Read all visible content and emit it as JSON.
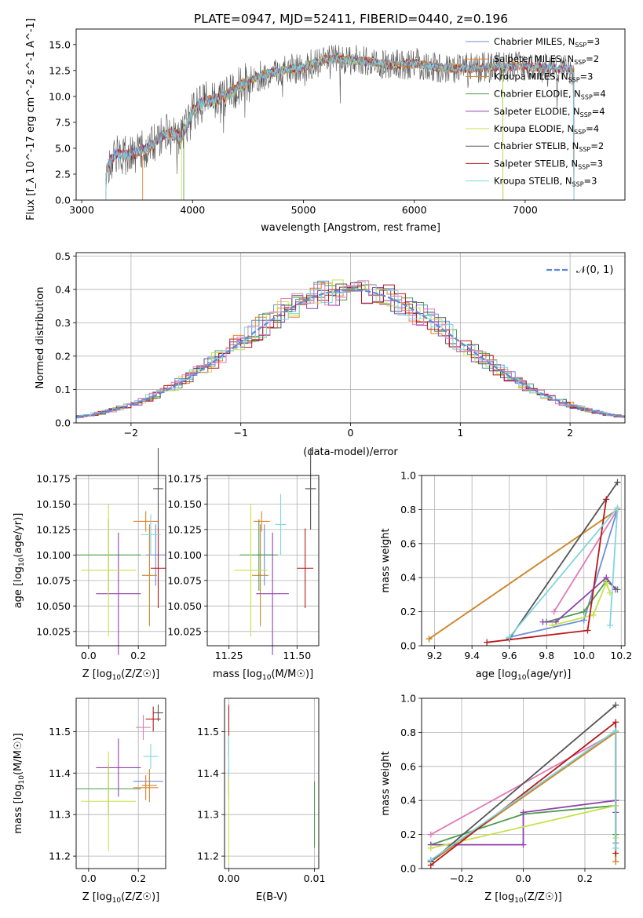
{
  "figure_title": "PLATE=0947, MJD=52411, FIBERID=0440, z=0.196",
  "series_colors": [
    "#6a8fd8",
    "#e67e22",
    "#cc8a30",
    "#4e9a4e",
    "#8e44ad",
    "#c8e04a",
    "#555555",
    "#b8181c",
    "#7fd6e0"
  ],
  "chart_data": [
    {
      "id": "spectrum",
      "type": "line",
      "title": "PLATE=0947, MJD=52411, FIBERID=0440, z=0.196",
      "xlabel": "wavelength [Angstrom, rest frame]",
      "ylabel": "Flux [f_λ 10^-17 erg cm^-2 s^-1 A^-1]",
      "xlim": [
        2950,
        7900
      ],
      "ylim": [
        0,
        16.5
      ],
      "xticks": [
        3000,
        4000,
        5000,
        6000,
        7000
      ],
      "yticks": [
        0.0,
        2.5,
        5.0,
        7.5,
        10.0,
        12.5,
        15.0
      ],
      "xtick_labels": [
        "3000",
        "4000",
        "5000",
        "6000",
        "7000"
      ],
      "ytick_labels": [
        "0.0",
        "2.5",
        "5.0",
        "7.5",
        "10.0",
        "12.5",
        "15.0"
      ],
      "legend_position": "top-right",
      "continuum": {
        "x": [
          3220,
          3300,
          3400,
          3500,
          3600,
          3700,
          3800,
          3900,
          4000,
          4100,
          4200,
          4300,
          4400,
          4500,
          4700,
          5000,
          5200,
          5500,
          5800,
          6000,
          6200,
          6500,
          6800,
          7000,
          7200,
          7440
        ],
        "y": [
          3.0,
          4.5,
          4.3,
          4.6,
          5.0,
          6.0,
          6.6,
          6.0,
          8.5,
          9.5,
          9.7,
          10.0,
          10.8,
          11.5,
          12.3,
          12.8,
          13.6,
          13.5,
          13.0,
          13.2,
          12.8,
          12.7,
          12.9,
          12.9,
          12.7,
          12.6
        ]
      },
      "series": [
        {
          "name": "Chabrier MILES, N_SSP=3",
          "label_main": "Chabrier MILES, N",
          "label_sub": "SSP",
          "label_end": "=3"
        },
        {
          "name": "Salpeter MILES, N_SSP=2",
          "label_main": "Salpeter MILES, N",
          "label_sub": "SSP",
          "label_end": "=2"
        },
        {
          "name": "Kroupa MILES, N_SSP=3",
          "label_main": "Kroupa MILES, N",
          "label_sub": "SSP",
          "label_end": "=3"
        },
        {
          "name": "Chabrier ELODIE, N_SSP=4",
          "label_main": "Chabrier ELODIE, N",
          "label_sub": "SSP",
          "label_end": "=4"
        },
        {
          "name": "Salpeter ELODIE, N_SSP=4",
          "label_main": "Salpeter ELODIE, N",
          "label_sub": "SSP",
          "label_end": "=4"
        },
        {
          "name": "Kroupa ELODIE, N_SSP=4",
          "label_main": "Kroupa ELODIE, N",
          "label_sub": "SSP",
          "label_end": "=4"
        },
        {
          "name": "Chabrier STELIB, N_SSP=2",
          "label_main": "Chabrier STELIB, N",
          "label_sub": "SSP",
          "label_end": "=2"
        },
        {
          "name": "Salpeter STELIB, N_SSP=3",
          "label_main": "Salpeter STELIB, N",
          "label_sub": "SSP",
          "label_end": "=3"
        },
        {
          "name": "Kroupa STELIB, N_SSP=3",
          "label_main": "Kroupa STELIB, N",
          "label_sub": "SSP",
          "label_end": "=3"
        }
      ],
      "series_x_ranges": [
        [
          3220,
          7440
        ],
        [
          3550,
          7440
        ],
        [
          3220,
          7440
        ],
        [
          3920,
          6800
        ],
        [
          3220,
          7440
        ],
        [
          3900,
          6800
        ],
        [
          3220,
          7440
        ],
        [
          3220,
          7440
        ],
        [
          3220,
          7440
        ]
      ]
    },
    {
      "id": "residuals",
      "type": "histogram",
      "xlabel": "(data-model)/error",
      "ylabel": "Normed distribution",
      "xlim": [
        -2.5,
        2.5
      ],
      "ylim": [
        0,
        0.51
      ],
      "xticks": [
        -2,
        -1,
        0,
        1,
        2
      ],
      "yticks": [
        0.0,
        0.1,
        0.2,
        0.3,
        0.4,
        0.5
      ],
      "xtick_labels": [
        "−2",
        "−1",
        "0",
        "1",
        "2"
      ],
      "ytick_labels": [
        "0.0",
        "0.1",
        "0.2",
        "0.3",
        "0.4",
        "0.5"
      ],
      "bin_width": 0.1,
      "reference_curve": {
        "name": "N(0,1)",
        "label": "𝒩(0, 1)",
        "color": "#5b8ad6",
        "mean": 0,
        "sigma": 1
      },
      "legend_position": "top-right"
    },
    {
      "id": "age-vs-z",
      "type": "errorbar",
      "xlabel_main": "Z [log",
      "xlabel_sub": "10",
      "xlabel_end": "(Z/Z☉)]",
      "ylabel_main": "age  [log",
      "ylabel_sub": "10",
      "ylabel_end": "(age/yr)]",
      "xlim": [
        -0.05,
        0.31
      ],
      "ylim": [
        10.011,
        10.178
      ],
      "xticks": [
        0.0,
        0.2
      ],
      "xtick_labels": [
        "0.0",
        "0.2"
      ],
      "yticks": [
        10.025,
        10.05,
        10.075,
        10.1,
        10.125,
        10.15,
        10.175
      ],
      "ytick_labels": [
        "10.025",
        "10.050",
        "10.075",
        "10.100",
        "10.125",
        "10.150",
        "10.175"
      ],
      "points": [
        {
          "series": 0,
          "x": 0.27,
          "xerr": 0.04,
          "y": 10.1,
          "yerr": 0.03
        },
        {
          "series": 1,
          "x": 0.23,
          "xerr": 0.05,
          "y": 10.133,
          "yerr": 0.01
        },
        {
          "series": 2,
          "x": 0.245,
          "xerr": 0.03,
          "y": 10.08,
          "yerr": 0.05
        },
        {
          "series": 3,
          "x": 0.08,
          "xerr": 0.13,
          "y": 10.1,
          "yerr": 0.035
        },
        {
          "series": 4,
          "x": 0.12,
          "xerr": 0.09,
          "y": 10.062,
          "yerr": 0.06
        },
        {
          "series": 5,
          "x": 0.08,
          "xerr": 0.11,
          "y": 10.085,
          "yerr": 0.065
        },
        {
          "series": 6,
          "x": 0.28,
          "xerr": 0.02,
          "y": 10.165,
          "yerr": 0.04
        },
        {
          "series": 7,
          "x": 0.28,
          "xerr": 0.03,
          "y": 10.087,
          "yerr": 0.039
        },
        {
          "series": 8,
          "x": 0.25,
          "xerr": 0.04,
          "y": 10.12,
          "yerr": 0.02
        }
      ]
    },
    {
      "id": "age-vs-mass",
      "type": "errorbar",
      "xlabel_main": "mass [log",
      "xlabel_sub": "10",
      "xlabel_end": "(M/M☉)]",
      "xlim": [
        11.17,
        11.58
      ],
      "ylim": [
        10.011,
        10.178
      ],
      "xticks": [
        11.25,
        11.5
      ],
      "xtick_labels": [
        "11.25",
        "11.50"
      ],
      "yticks": [
        10.025,
        10.05,
        10.075,
        10.1,
        10.125,
        10.15,
        10.175
      ],
      "ytick_labels": [
        "10.025",
        "10.050",
        "10.075",
        "10.100",
        "10.125",
        "10.150",
        "10.175"
      ],
      "points": [
        {
          "series": 0,
          "x": 11.38,
          "xerr": 0.03,
          "y": 10.1,
          "yerr": 0.03
        },
        {
          "series": 1,
          "x": 11.37,
          "xerr": 0.03,
          "y": 10.133,
          "yerr": 0.01
        },
        {
          "series": 2,
          "x": 11.365,
          "xerr": 0.03,
          "y": 10.08,
          "yerr": 0.05
        },
        {
          "series": 3,
          "x": 11.36,
          "xerr": 0.07,
          "y": 10.1,
          "yerr": 0.035
        },
        {
          "series": 4,
          "x": 11.41,
          "xerr": 0.06,
          "y": 10.062,
          "yerr": 0.06
        },
        {
          "series": 5,
          "x": 11.33,
          "xerr": 0.06,
          "y": 10.085,
          "yerr": 0.065
        },
        {
          "series": 6,
          "x": 11.55,
          "xerr": 0.02,
          "y": 10.165,
          "yerr": 0.04
        },
        {
          "series": 7,
          "x": 11.53,
          "xerr": 0.03,
          "y": 10.087,
          "yerr": 0.039
        },
        {
          "series": 8,
          "x": 11.44,
          "xerr": 0.02,
          "y": 10.13,
          "yerr": 0.03
        }
      ]
    },
    {
      "id": "mass-weight-vs-age",
      "type": "line",
      "xlabel_main": "age  [log",
      "xlabel_sub": "10",
      "xlabel_end": "(age/yr)]",
      "ylabel": "mass weight",
      "xlim": [
        9.13,
        10.22
      ],
      "ylim": [
        0,
        1.0
      ],
      "xticks": [
        9.2,
        9.4,
        9.6,
        9.8,
        10.0,
        10.2
      ],
      "xtick_labels": [
        "9.2",
        "9.4",
        "9.6",
        "9.8",
        "10.0",
        "10.2"
      ],
      "yticks": [
        0.0,
        0.2,
        0.4,
        0.6,
        0.8,
        1.0
      ],
      "ytick_labels": [
        "0.0",
        "0.2",
        "0.4",
        "0.6",
        "0.8",
        "1.0"
      ],
      "lines": [
        {
          "series": 0,
          "x": [
            9.6,
            10.0,
            10.18
          ],
          "y": [
            0.05,
            0.15,
            0.8
          ]
        },
        {
          "series": 1,
          "x": [
            9.17,
            10.18
          ],
          "y": [
            0.04,
            0.8
          ]
        },
        {
          "series": 2,
          "x": [
            9.17,
            10.18
          ],
          "y": [
            0.04,
            0.8
          ]
        },
        {
          "series": 3,
          "x": [
            9.8,
            10.0,
            10.12,
            10.18
          ],
          "y": [
            0.14,
            0.2,
            0.38,
            0.33
          ]
        },
        {
          "series": 4,
          "x": [
            9.78,
            9.85,
            10.12,
            10.17
          ],
          "y": [
            0.14,
            0.14,
            0.4,
            0.33
          ]
        },
        {
          "series": 5,
          "x": [
            9.83,
            10.05,
            10.12,
            10.14
          ],
          "y": [
            0.12,
            0.18,
            0.37,
            0.31
          ]
        },
        {
          "series": 6,
          "x": [
            9.6,
            10.18
          ],
          "y": [
            0.04,
            0.96
          ]
        },
        {
          "series": 7,
          "x": [
            9.48,
            10.02,
            10.12
          ],
          "y": [
            0.02,
            0.09,
            0.86
          ]
        },
        {
          "series": 8,
          "x": [
            9.6,
            10.18,
            10.14
          ],
          "y": [
            0.05,
            0.81,
            0.12
          ]
        }
      ],
      "extra_line": {
        "series_color": "#e07bb8",
        "x": [
          9.84,
          10.18
        ],
        "y": [
          0.2,
          0.8
        ]
      }
    },
    {
      "id": "mass-vs-z",
      "type": "errorbar",
      "xlabel_main": "Z [log",
      "xlabel_sub": "10",
      "xlabel_end": "(Z/Z☉)]",
      "ylabel_main": "mass [log",
      "ylabel_sub": "10",
      "ylabel_end": "(M/M☉)]",
      "xlim": [
        -0.05,
        0.31
      ],
      "ylim": [
        11.17,
        11.58
      ],
      "xticks": [
        0.0,
        0.2
      ],
      "xtick_labels": [
        "0.0",
        "0.2"
      ],
      "yticks": [
        11.2,
        11.3,
        11.4,
        11.5
      ],
      "ytick_labels": [
        "11.2",
        "11.3",
        "11.4",
        "11.5"
      ],
      "points": [
        {
          "series": 0,
          "x": 0.24,
          "xerr": 0.06,
          "y": 11.38,
          "yerr": 0.0
        },
        {
          "series": 1,
          "x": 0.23,
          "xerr": 0.05,
          "y": 11.365,
          "yerr": 0.03
        },
        {
          "series": 2,
          "x": 0.245,
          "xerr": 0.03,
          "y": 11.37,
          "yerr": 0.04
        },
        {
          "series": 3,
          "x": 0.08,
          "xerr": 0.13,
          "y": 11.362,
          "yerr": 0.06
        },
        {
          "series": 4,
          "x": 0.12,
          "xerr": 0.09,
          "y": 11.413,
          "yerr": 0.07
        },
        {
          "series": 5,
          "x": 0.08,
          "xerr": 0.11,
          "y": 11.332,
          "yerr": 0.12
        },
        {
          "series": 6,
          "x": 0.28,
          "xerr": 0.02,
          "y": 11.545,
          "yerr": 0.02
        },
        {
          "series": 7,
          "x": 0.26,
          "xerr": 0.03,
          "y": 11.53,
          "yerr": 0.03
        },
        {
          "series": 8,
          "x": 0.25,
          "xerr": 0.03,
          "y": 11.44,
          "yerr": 0.03
        },
        {
          "series": -1,
          "color": "#e07bb8",
          "x": 0.22,
          "xerr": 0.03,
          "y": 11.51,
          "yerr": 0.03
        }
      ]
    },
    {
      "id": "mass-vs-ebv",
      "type": "errorbar",
      "xlabel": "E(B-V)",
      "xlim": [
        -0.0005,
        0.0105
      ],
      "ylim": [
        11.17,
        11.58
      ],
      "xticks": [
        0.0,
        0.01
      ],
      "xtick_labels": [
        "0.00",
        "0.01"
      ],
      "yticks": [
        11.2,
        11.3,
        11.4,
        11.5
      ],
      "ytick_labels": [
        "11.2",
        "11.3",
        "11.4",
        "11.5"
      ],
      "points": [
        {
          "series": 0,
          "x": 0.0,
          "xerr": 0,
          "y": 11.38,
          "yerr": 0.03
        },
        {
          "series": 1,
          "x": 0.0,
          "xerr": 0,
          "y": 11.365,
          "yerr": 0.03
        },
        {
          "series": 3,
          "x": 0.01,
          "xerr": 0,
          "y": 11.3,
          "yerr": 0.08
        },
        {
          "series": 4,
          "x": 0.0,
          "xerr": 0,
          "y": 11.41,
          "yerr": 0.07
        },
        {
          "series": 5,
          "x": 0.0,
          "xerr": 0,
          "y": 11.3,
          "yerr": 0.12
        },
        {
          "series": 6,
          "x": 0.0,
          "xerr": 0,
          "y": 11.545,
          "yerr": 0.02
        },
        {
          "series": 7,
          "x": 0.0,
          "xerr": 0,
          "y": 11.5,
          "yerr": 0.06
        },
        {
          "series": 8,
          "x": 0.0,
          "xerr": 0,
          "y": 11.44,
          "yerr": 0.05
        }
      ]
    },
    {
      "id": "mass-weight-vs-z",
      "type": "line",
      "xlabel_main": "Z [log",
      "xlabel_sub": "10",
      "xlabel_end": "(Z/Z☉)]",
      "ylabel": "mass weight",
      "xlim": [
        -0.33,
        0.33
      ],
      "ylim": [
        0,
        1.0
      ],
      "xticks": [
        -0.2,
        0.0,
        0.2
      ],
      "xtick_labels": [
        "−0.2",
        "0.0",
        "0.2"
      ],
      "yticks": [
        0.0,
        0.2,
        0.4,
        0.6,
        0.8,
        1.0
      ],
      "ytick_labels": [
        "0.0",
        "0.2",
        "0.4",
        "0.6",
        "0.8",
        "1.0"
      ],
      "lines": [
        {
          "series": 0,
          "x": [
            -0.3,
            0.3,
            0.3
          ],
          "y": [
            0.05,
            0.8,
            0.15
          ]
        },
        {
          "series": 1,
          "x": [
            -0.3,
            0.3,
            0.3
          ],
          "y": [
            0.04,
            0.8,
            0.04
          ]
        },
        {
          "series": 2,
          "x": [
            -0.3,
            0.3,
            0.3
          ],
          "y": [
            0.04,
            0.8,
            0.04
          ]
        },
        {
          "series": 3,
          "x": [
            -0.3,
            0.0,
            0.3,
            0.3
          ],
          "y": [
            0.14,
            0.32,
            0.37,
            0.2
          ]
        },
        {
          "series": 4,
          "x": [
            -0.3,
            0.0,
            0.0,
            0.3,
            0.3
          ],
          "y": [
            0.14,
            0.14,
            0.33,
            0.4,
            0.33
          ]
        },
        {
          "series": 5,
          "x": [
            -0.3,
            0.3,
            0.3
          ],
          "y": [
            0.12,
            0.37,
            0.18
          ]
        },
        {
          "series": 6,
          "x": [
            -0.3,
            0.3
          ],
          "y": [
            0.04,
            0.96
          ]
        },
        {
          "series": 7,
          "x": [
            -0.3,
            0.3,
            0.3
          ],
          "y": [
            0.02,
            0.86,
            0.09
          ]
        },
        {
          "series": 8,
          "x": [
            -0.3,
            0.3,
            0.3
          ],
          "y": [
            0.05,
            0.81,
            0.12
          ]
        }
      ],
      "extra_line": {
        "series_color": "#e07bb8",
        "x": [
          -0.3,
          0.3
        ],
        "y": [
          0.2,
          0.8
        ]
      }
    }
  ]
}
